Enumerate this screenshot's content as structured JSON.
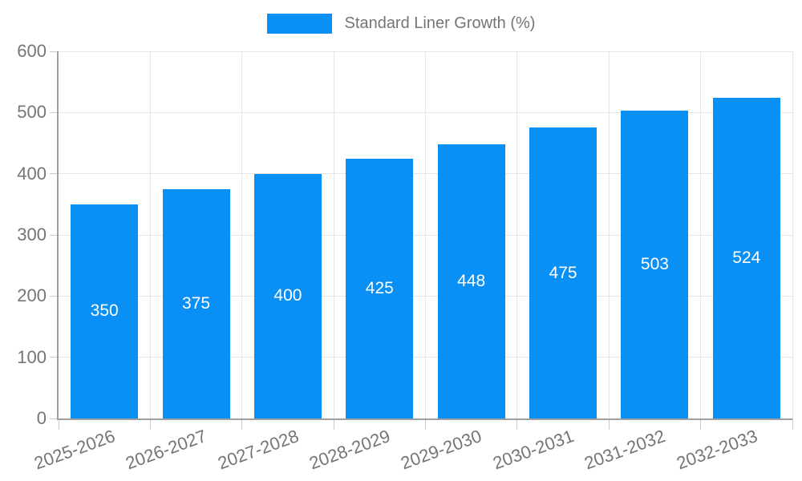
{
  "chart_data": {
    "type": "bar",
    "title": "",
    "xlabel": "",
    "ylabel": "",
    "legend": "Standard Liner Growth (%)",
    "legend_position": "top",
    "categories": [
      "2025-2026",
      "2026-2027",
      "2027-2028",
      "2028-2029",
      "2029-2030",
      "2030-2031",
      "2031-2032",
      "2032-2033"
    ],
    "values": [
      350,
      375,
      400,
      425,
      448,
      475,
      503,
      524
    ],
    "ylim": [
      0,
      600
    ],
    "yticks": [
      0,
      100,
      200,
      300,
      400,
      500,
      600
    ],
    "grid": true,
    "bar_value_labels": [
      350,
      375,
      400,
      425,
      448,
      475,
      503,
      524
    ],
    "colors": {
      "bar": "#0a90f5",
      "grid": "#e6e6e6",
      "axis": "#9e9e9e",
      "tick": "#c9c9c9",
      "text": "#757575",
      "value_label": "#ffffff",
      "background": "#ffffff"
    }
  }
}
